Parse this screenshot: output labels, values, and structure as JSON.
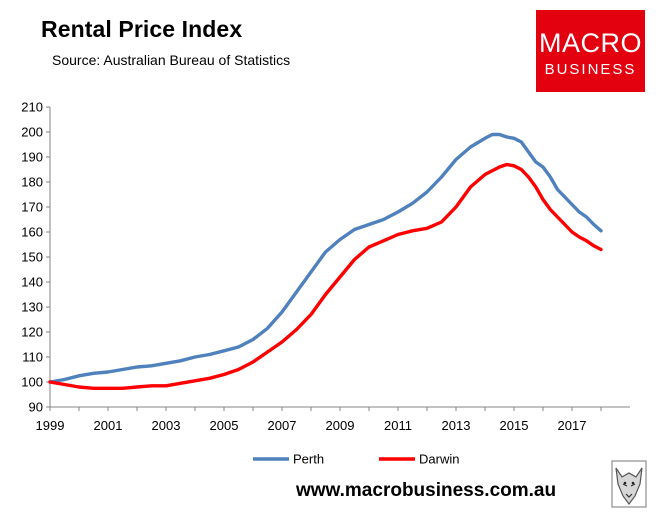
{
  "header": {
    "title": "Rental Price Index",
    "source": "Source: Australian Bureau of Statistics"
  },
  "logo": {
    "line1": "MACRO",
    "line2": "BUSINESS"
  },
  "footer": {
    "website": "www.macrobusiness.com.au"
  },
  "colors": {
    "perth": "#4f81bd",
    "darwin": "#ff0000",
    "logo_bg": "#e3000f"
  },
  "chart_data": {
    "type": "line",
    "title": "Rental Price Index",
    "xlabel": "",
    "ylabel": "",
    "xlim": [
      1999,
      2019
    ],
    "ylim": [
      90,
      210
    ],
    "yticks": [
      90,
      100,
      110,
      120,
      130,
      140,
      150,
      160,
      170,
      180,
      190,
      200,
      210
    ],
    "xticks": [
      1999,
      2001,
      2003,
      2005,
      2007,
      2009,
      2011,
      2013,
      2015,
      2017
    ],
    "legend": "bottom-center",
    "grid": false,
    "series": [
      {
        "name": "Perth",
        "color": "#4f81bd",
        "points": [
          [
            1999.0,
            100
          ],
          [
            1999.5,
            101
          ],
          [
            2000.0,
            102.5
          ],
          [
            2000.5,
            103.5
          ],
          [
            2001.0,
            104
          ],
          [
            2001.5,
            105
          ],
          [
            2002.0,
            106
          ],
          [
            2002.5,
            106.5
          ],
          [
            2003.0,
            107.5
          ],
          [
            2003.5,
            108.5
          ],
          [
            2004.0,
            110
          ],
          [
            2004.5,
            111
          ],
          [
            2005.0,
            112.5
          ],
          [
            2005.5,
            114
          ],
          [
            2006.0,
            117
          ],
          [
            2006.5,
            121.5
          ],
          [
            2007.0,
            128
          ],
          [
            2007.5,
            136
          ],
          [
            2008.0,
            144
          ],
          [
            2008.5,
            152
          ],
          [
            2009.0,
            157
          ],
          [
            2009.5,
            161
          ],
          [
            2010.0,
            163
          ],
          [
            2010.5,
            165
          ],
          [
            2011.0,
            168
          ],
          [
            2011.5,
            171.5
          ],
          [
            2012.0,
            176
          ],
          [
            2012.5,
            182
          ],
          [
            2013.0,
            189
          ],
          [
            2013.5,
            194
          ],
          [
            2014.0,
            197.5
          ],
          [
            2014.25,
            199
          ],
          [
            2014.5,
            199
          ],
          [
            2014.75,
            198
          ],
          [
            2015.0,
            197.5
          ],
          [
            2015.25,
            196
          ],
          [
            2015.5,
            192
          ],
          [
            2015.75,
            188
          ],
          [
            2016.0,
            186
          ],
          [
            2016.25,
            182
          ],
          [
            2016.5,
            177
          ],
          [
            2016.75,
            174
          ],
          [
            2017.0,
            171
          ],
          [
            2017.25,
            168
          ],
          [
            2017.5,
            166
          ],
          [
            2017.75,
            163
          ],
          [
            2018.0,
            160.5
          ]
        ]
      },
      {
        "name": "Darwin",
        "color": "#ff0000",
        "points": [
          [
            1999.0,
            100
          ],
          [
            1999.5,
            99
          ],
          [
            2000.0,
            98
          ],
          [
            2000.5,
            97.5
          ],
          [
            2001.0,
            97.5
          ],
          [
            2001.5,
            97.5
          ],
          [
            2002.0,
            98
          ],
          [
            2002.5,
            98.5
          ],
          [
            2003.0,
            98.5
          ],
          [
            2003.5,
            99.5
          ],
          [
            2004.0,
            100.5
          ],
          [
            2004.5,
            101.5
          ],
          [
            2005.0,
            103
          ],
          [
            2005.5,
            105
          ],
          [
            2006.0,
            108
          ],
          [
            2006.5,
            112
          ],
          [
            2007.0,
            116
          ],
          [
            2007.5,
            121
          ],
          [
            2008.0,
            127
          ],
          [
            2008.5,
            135
          ],
          [
            2009.0,
            142
          ],
          [
            2009.5,
            149
          ],
          [
            2010.0,
            154
          ],
          [
            2010.5,
            156.5
          ],
          [
            2011.0,
            159
          ],
          [
            2011.5,
            160.5
          ],
          [
            2012.0,
            161.5
          ],
          [
            2012.5,
            164
          ],
          [
            2013.0,
            170
          ],
          [
            2013.5,
            178
          ],
          [
            2014.0,
            183
          ],
          [
            2014.5,
            186
          ],
          [
            2014.75,
            187
          ],
          [
            2015.0,
            186.5
          ],
          [
            2015.25,
            185
          ],
          [
            2015.5,
            182
          ],
          [
            2015.75,
            178
          ],
          [
            2016.0,
            173
          ],
          [
            2016.25,
            169
          ],
          [
            2016.5,
            166
          ],
          [
            2016.75,
            163
          ],
          [
            2017.0,
            160
          ],
          [
            2017.25,
            158
          ],
          [
            2017.5,
            156.5
          ],
          [
            2017.75,
            154.5
          ],
          [
            2018.0,
            153
          ]
        ]
      }
    ]
  }
}
